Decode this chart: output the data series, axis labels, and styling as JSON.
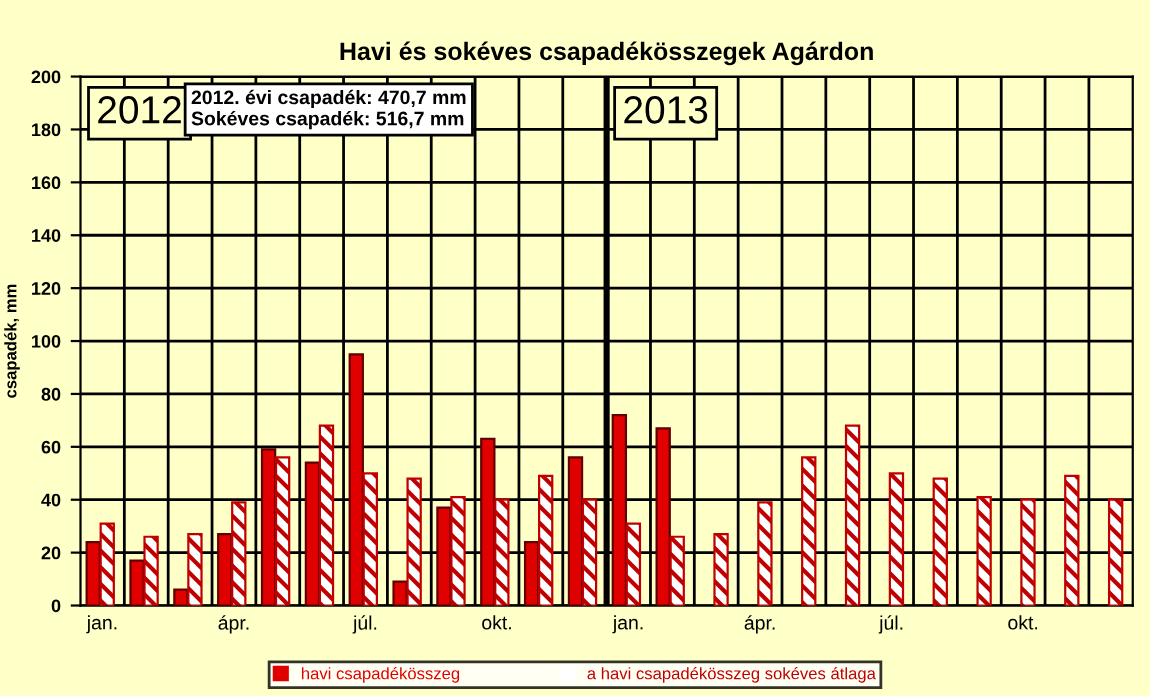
{
  "chart_data": {
    "type": "bar",
    "title": "Havi és sokéves csapadékösszegek Agárdon",
    "ylabel": "csapadék, mm",
    "categories": [
      "jan.",
      null,
      null,
      "ápr.",
      null,
      null,
      "júl.",
      null,
      null,
      "okt.",
      null,
      null,
      "jan.",
      null,
      null,
      "ápr.",
      null,
      null,
      "júl.",
      null,
      null,
      "okt.",
      null,
      null
    ],
    "series": [
      {
        "name": "havi csapadékösszeg",
        "color": "#e00000",
        "values": [
          24,
          17,
          6,
          27,
          59,
          54,
          95,
          9,
          37,
          63,
          24,
          56,
          72,
          67,
          null,
          null,
          null,
          null,
          null,
          null,
          null,
          null,
          null,
          null
        ]
      },
      {
        "name": "a havi csapadékösszeg sokéves átlaga",
        "color": "#c00000",
        "values": [
          31,
          26,
          27,
          39,
          56,
          68,
          50,
          48,
          41,
          40,
          49,
          40,
          31,
          26,
          27,
          39,
          56,
          68,
          50,
          48,
          41,
          40,
          49,
          40
        ]
      }
    ],
    "ylim": [
      0,
      200
    ],
    "yticks": [
      0,
      20,
      40,
      60,
      80,
      100,
      120,
      140,
      160,
      180,
      200
    ],
    "grid": true,
    "legend": "bottom",
    "annotations": [
      "2012",
      "2012. évi csapadék: 470,7 mm\nSokéves csapadék: 516,7 mm",
      "2013"
    ]
  }
}
